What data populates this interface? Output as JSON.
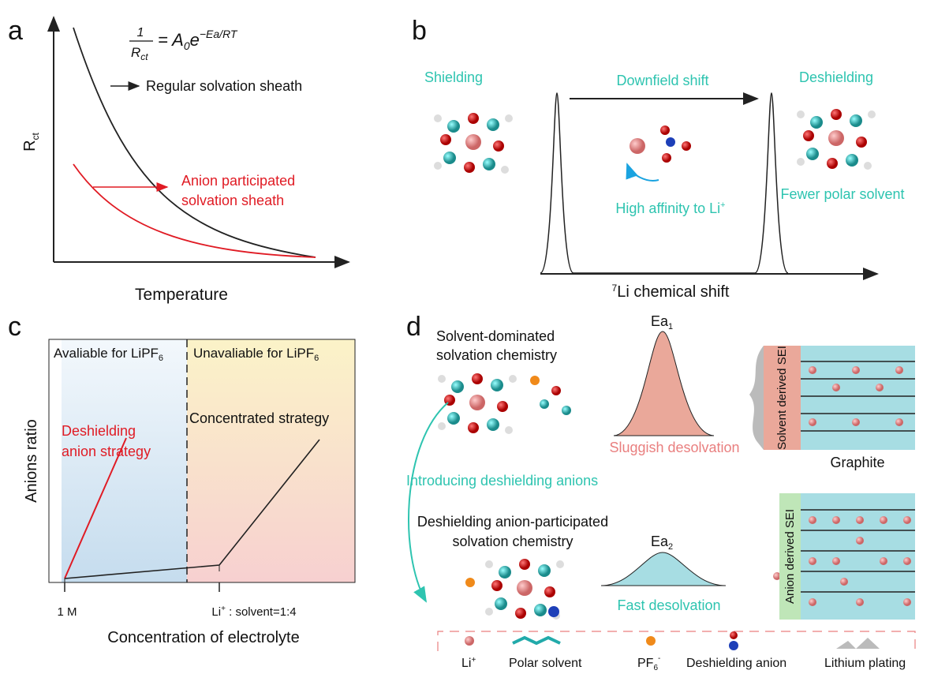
{
  "panel_a": {
    "label": "a",
    "formula": {
      "numerator": "1",
      "denominator": "R",
      "denominator_sub": "ct",
      "rhs": "= A",
      "rhs_sub": "0",
      "base": "e",
      "exponent": "−Ea/RT"
    },
    "regular": "Regular solvation sheath",
    "anion_line1": "Anion participated",
    "anion_line2": "solvation sheath",
    "y_label": "R",
    "y_label_sub": "ct",
    "x_label": "Temperature"
  },
  "panel_b": {
    "label": "b",
    "shielding": "Shielding",
    "deshielding": "Deshielding",
    "downfield": "Downfield shift",
    "affinity": "High affinity to Li",
    "affinity_sup": "+",
    "fewer": "Fewer polar solvent",
    "x_label_sup": "7",
    "x_label": "Li chemical shift"
  },
  "panel_c": {
    "label": "c",
    "left_title": "Avaliable for LiPF",
    "left_title_sub": "6",
    "right_title": "Unavaliable for LiPF",
    "right_title_sub": "6",
    "deshielding_line1": "Deshielding",
    "deshielding_line2": "anion strategy",
    "concentrated": "Concentrated strategy",
    "y_label": "Anions ratio",
    "x_label": "Concentration of electrolyte",
    "tick1": "1 M",
    "tick2": "Li",
    "tick2_sup": "+",
    "tick2_rest": " : solvent=1:4"
  },
  "panel_d": {
    "label": "d",
    "solvent_line1": "Solvent-dominated",
    "solvent_line2": "solvation chemistry",
    "ea1": "Ea",
    "ea1_sub": "1",
    "sluggish": "Sluggish desolvation",
    "solvent_sei": "Solvent derived SEI",
    "graphite": "Graphite",
    "introducing": "Introducing deshielding anions",
    "anion_line1": "Deshielding anion-participated",
    "anion_line2": "solvation chemistry",
    "ea2": "Ea",
    "ea2_sub": "2",
    "fast": "Fast desolvation",
    "anion_sei": "Anion derived SEI",
    "legend": {
      "li": "Li",
      "li_sup": "+",
      "polar": "Polar solvent",
      "pf": "PF",
      "pf_sub": "6",
      "pf_sup": "-",
      "anion": "Deshielding anion",
      "plating": "Lithium plating"
    }
  }
}
